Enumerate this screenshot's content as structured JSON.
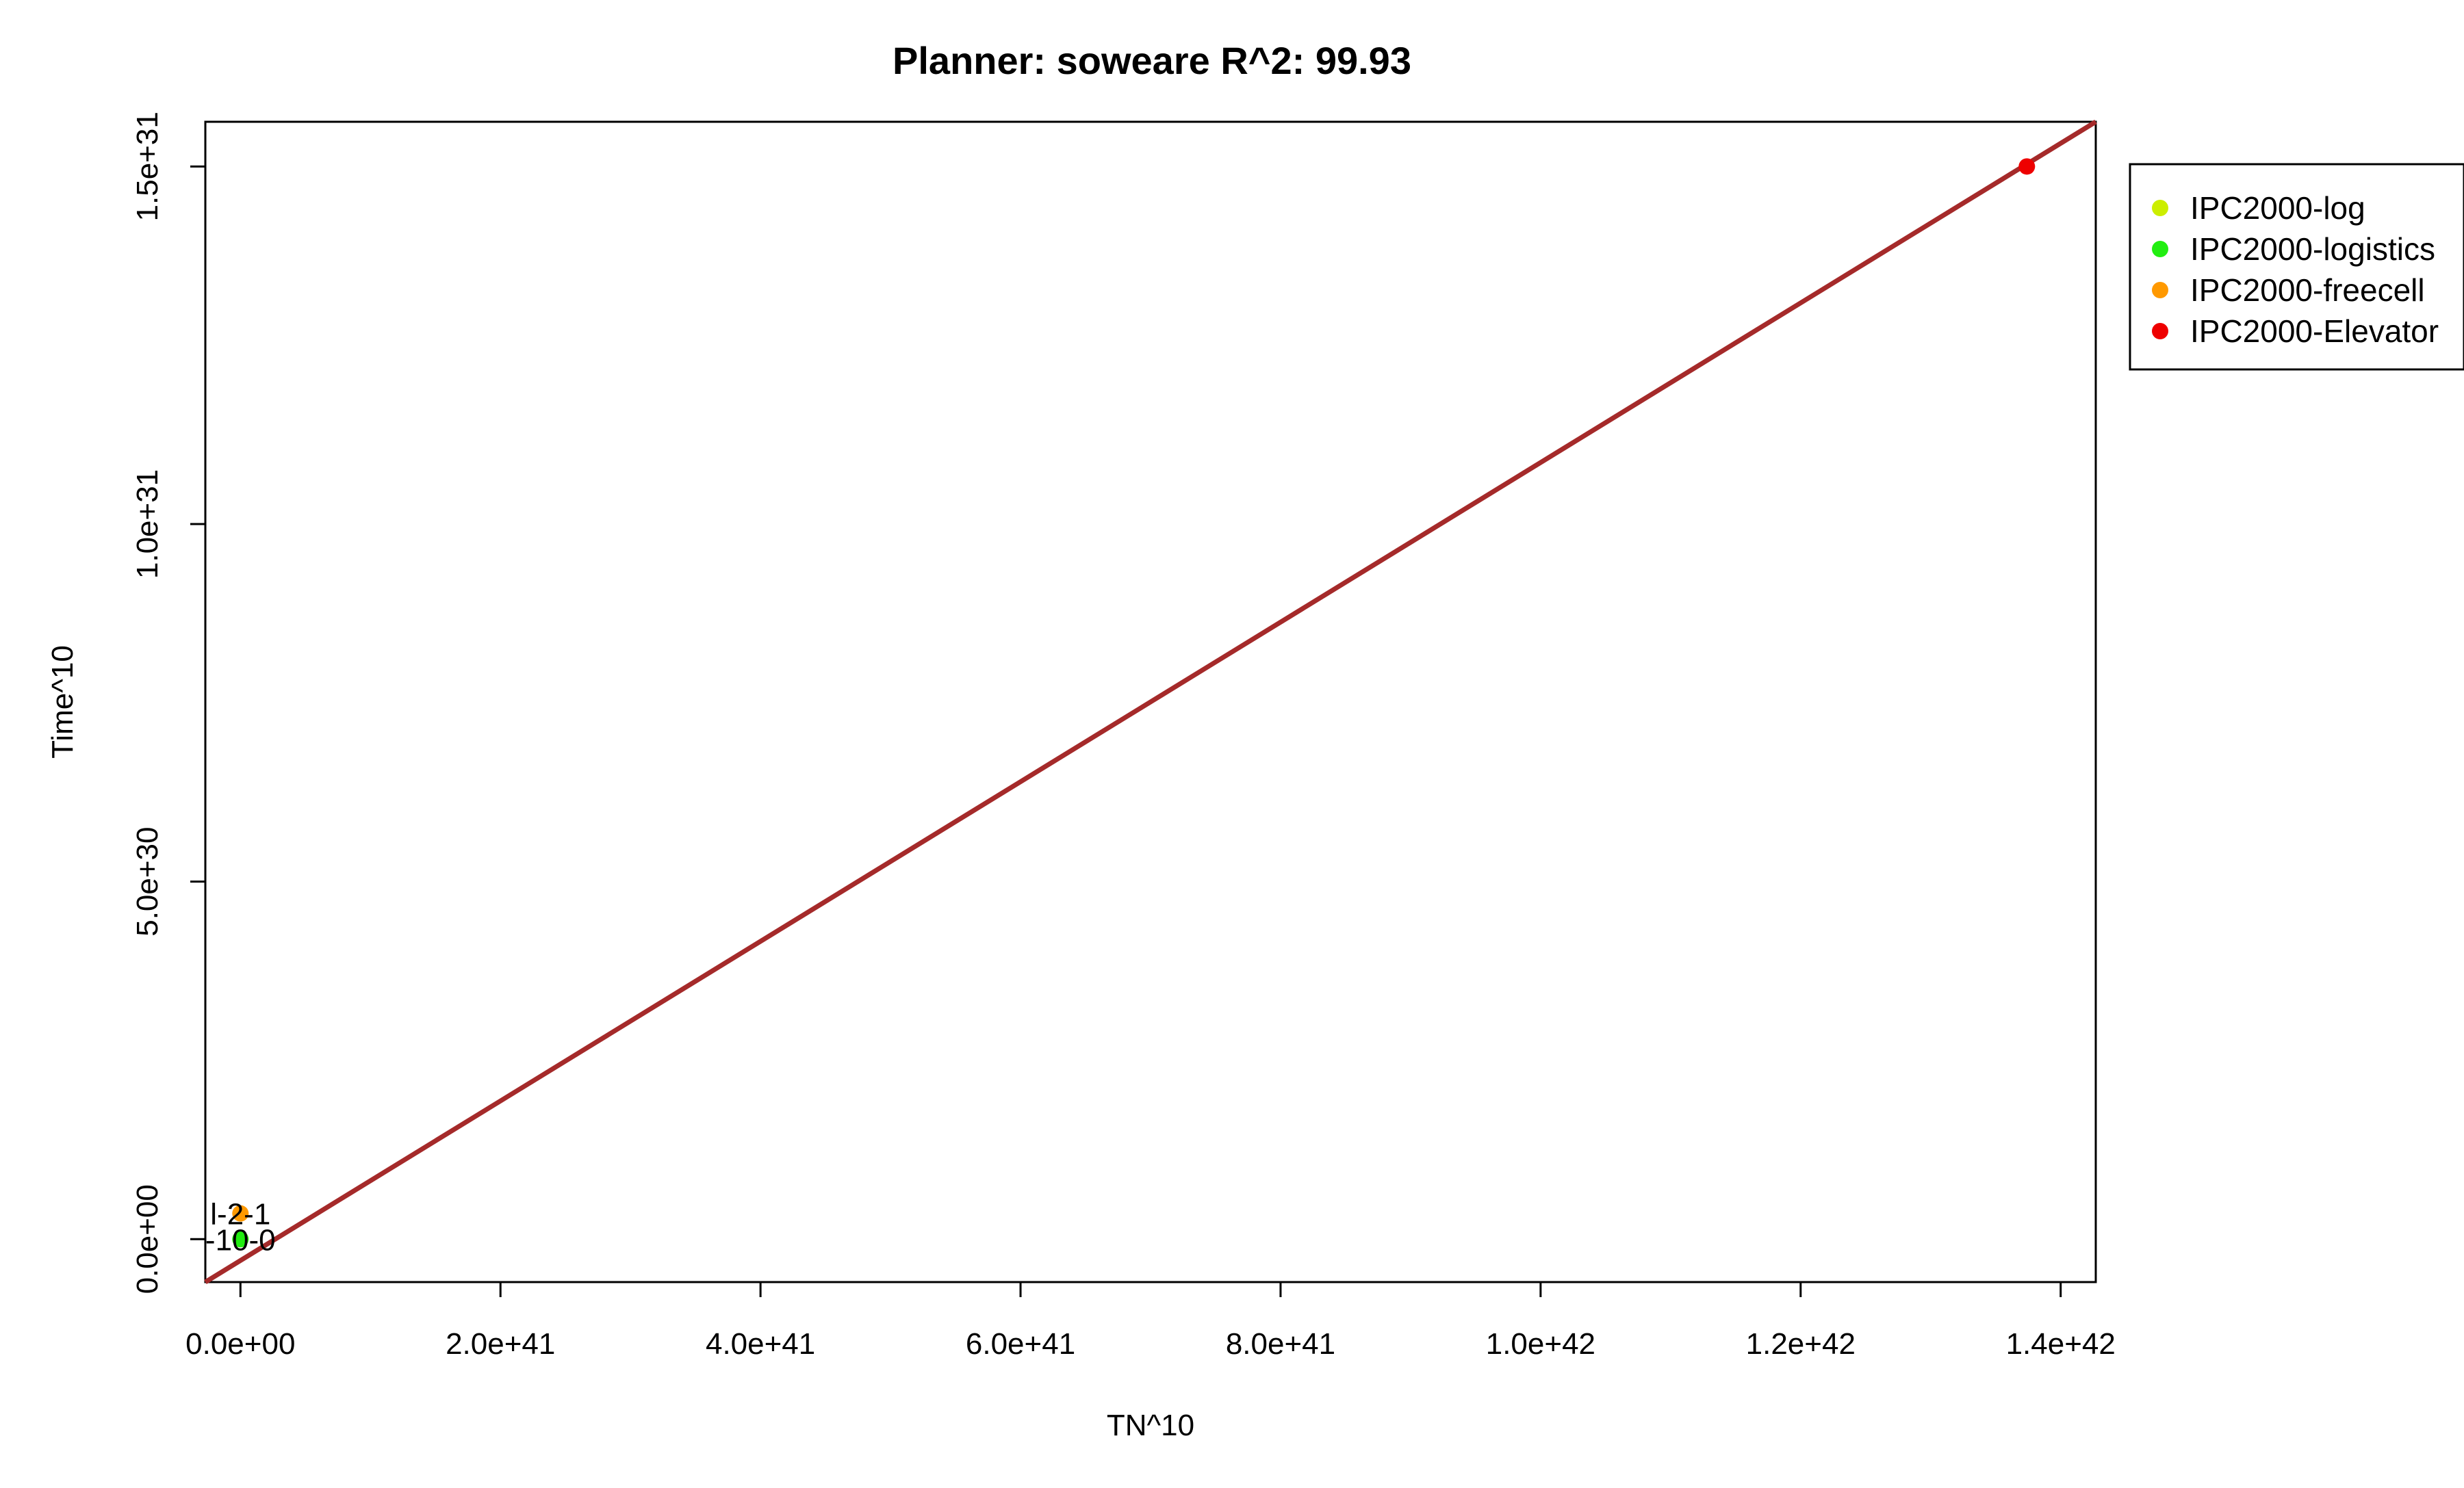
{
  "chart_data": {
    "type": "scatter",
    "title": "Planner: soweare R^2: 99.93",
    "xlabel": "TN^10",
    "ylabel": "Time^10",
    "xlim": [
      -2.7e+40,
      1.427e+42
    ],
    "ylim": [
      -6e+29,
      1.5625e+31
    ],
    "x_ticks": [
      0,
      2e+41,
      4e+41,
      6e+41,
      8e+41,
      1e+42,
      1.2e+42,
      1.4e+42
    ],
    "x_tick_labels": [
      "0.0e+00",
      "2.0e+41",
      "4.0e+41",
      "6.0e+41",
      "8.0e+41",
      "1.0e+42",
      "1.2e+42",
      "1.4e+42"
    ],
    "y_ticks": [
      0,
      5e+30,
      1e+31,
      1.5e+31
    ],
    "y_tick_labels": [
      "0.0e+00",
      "5.0e+30",
      "1.0e+31",
      "1.5e+31"
    ],
    "grid": false,
    "legend_position": "outside-top-right",
    "series": [
      {
        "name": "IPC2000-log",
        "color": "#ccee00",
        "points": [
          {
            "x": 0.0,
            "y": 0.0
          }
        ]
      },
      {
        "name": "IPC2000-logistics",
        "color": "#22ee11",
        "points": [
          {
            "x": 0.0,
            "y": 0.0
          }
        ]
      },
      {
        "name": "IPC2000-freecell",
        "color": "#ff9900",
        "points": [
          {
            "x": 0.0,
            "y": 3.6e+29
          }
        ]
      },
      {
        "name": "IPC2000-Elevator",
        "color": "#ee0000",
        "points": [
          {
            "x": 1.374e+42,
            "y": 1.5e+31
          }
        ]
      }
    ],
    "point_labels": [
      {
        "text": "l-2-1",
        "x": 0.0,
        "y": 3.6e+29
      },
      {
        "text": "-10-0",
        "x": 0.0,
        "y": 0.0
      }
    ],
    "fit_line": {
      "color": "#a52a2a",
      "from": {
        "x": -2.7e+40,
        "y": -6e+29
      },
      "to": {
        "x": 1.427e+42,
        "y": 1.5625e+31
      }
    }
  }
}
